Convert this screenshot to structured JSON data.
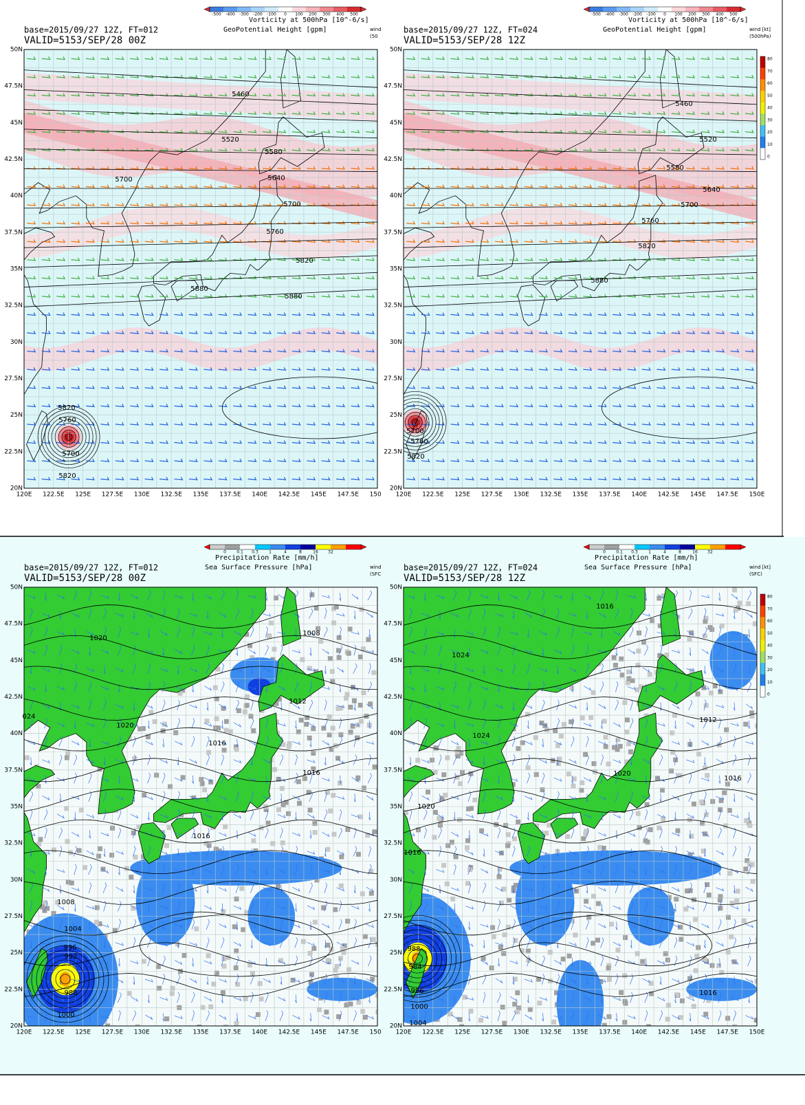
{
  "panels": [
    {
      "colorbar_ticks": [
        "-500",
        "-400",
        "-300",
        "-200",
        "-100",
        "0",
        "100",
        "200",
        "300",
        "400",
        "500"
      ],
      "colorbar_title": "Vorticity at 500hPa [10^-6/s]",
      "field_title": "GeoPotential Height [gpm]",
      "base": "base=2015/09/27 12Z, FT=012",
      "valid": "VALID=5153/SEP/28 00Z",
      "wind_label": "wind",
      "wind_level": "(50",
      "contour_labels": [
        "5460",
        "5520",
        "5580",
        "5640",
        "5700",
        "5700",
        "5760",
        "5820",
        "5880",
        "5880",
        "5820",
        "5760",
        "5700",
        "5820"
      ]
    },
    {
      "colorbar_ticks": [
        "-500",
        "-400",
        "-300",
        "-200",
        "-100",
        "0",
        "100",
        "200",
        "300",
        "400",
        "500"
      ],
      "colorbar_title": "Vorticity at 500hPa [10^-6/s]",
      "field_title": "GeoPotential Height [gpm]",
      "base": "base=2015/09/27 12Z, FT=024",
      "valid": "VALID=5153/SEP/28 12Z",
      "wind_label": "wind [kt]",
      "wind_level": "(500hPa)",
      "contour_labels": [
        "5460",
        "5520",
        "5580",
        "5640",
        "5700",
        "5760",
        "5820",
        "5880",
        "5700",
        "5760",
        "5820"
      ]
    },
    {
      "colorbar_ticks": [
        "0",
        "0.1",
        "0.3",
        "1",
        "4",
        "8",
        "16",
        "32"
      ],
      "colorbar_title": "Precipitation Rate [mm/h]",
      "field_title": "Sea Surface Pressure [hPa]",
      "base": "base=2015/09/27 12Z, FT=012",
      "valid": "VALID=5153/SEP/28 00Z",
      "wind_label": "wind",
      "wind_level": "(SFC",
      "contour_labels": [
        "1020",
        "1008",
        "1012",
        "024",
        "1020",
        "1016",
        "1016",
        "1016",
        "1008",
        "1004",
        "996",
        "992",
        "988",
        "1000"
      ]
    },
    {
      "colorbar_ticks": [
        "0",
        "0.1",
        "0.3",
        "1",
        "4",
        "8",
        "16",
        "32"
      ],
      "colorbar_title": "Precipitation Rate [mm/h]",
      "field_title": "Sea Surface Pressure [hPa]",
      "base": "base=2015/09/27 12Z, FT=024",
      "valid": "VALID=5153/SEP/28 12Z",
      "wind_label": "wind [kt]",
      "wind_level": "(SFC)",
      "contour_labels": [
        "1016",
        "1024",
        "1012",
        "1024",
        "1020",
        "1016",
        "1020",
        "1016",
        "988",
        "984",
        "996",
        "1000",
        "1004",
        "1016"
      ]
    }
  ],
  "lat_labels": [
    "50N",
    "47.5N",
    "45N",
    "42.5N",
    "40N",
    "37.5N",
    "35N",
    "32.5N",
    "30N",
    "27.5N",
    "25N",
    "22.5N",
    "20N"
  ],
  "lon_labels": [
    "120E",
    "122.5E",
    "125E",
    "127.5E",
    "130E",
    "132.5E",
    "135E",
    "137.5E",
    "140E",
    "142.5E",
    "145E",
    "147.5E",
    "150E"
  ],
  "wind_scale_ticks": [
    "80",
    "70",
    "60",
    "50",
    "40",
    "30",
    "20",
    "10",
    "0"
  ]
}
